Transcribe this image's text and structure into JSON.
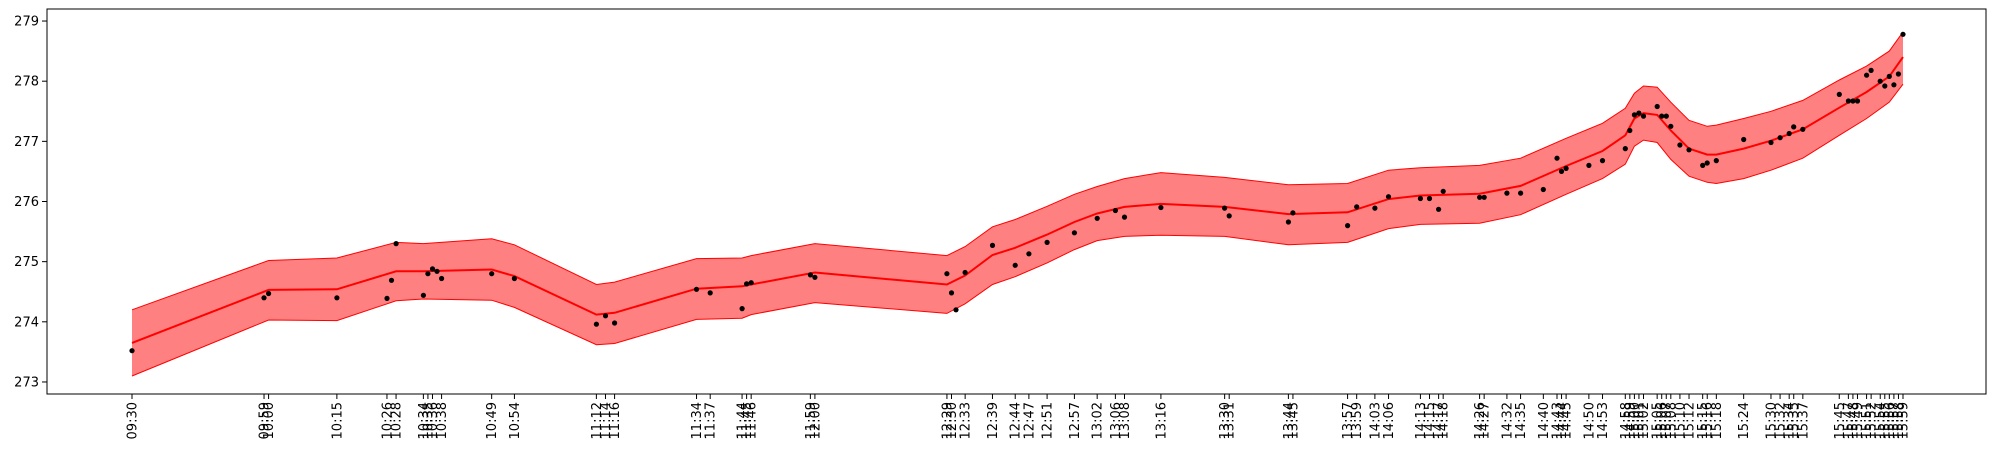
{
  "chart_data": {
    "type": "line",
    "title": "",
    "xlabel": "",
    "ylabel": "",
    "ylim": [
      272.8,
      279.2
    ],
    "yticks": [
      273,
      274,
      275,
      276,
      277,
      278,
      279
    ],
    "x_tick_labels": [
      "09:30",
      "09:59",
      "10:00",
      "10:15",
      "10:26",
      "10:28",
      "10:34",
      "10:35",
      "10:36",
      "10:38",
      "10:49",
      "10:54",
      "11:12",
      "11:14",
      "11:16",
      "11:34",
      "11:37",
      "11:44",
      "11:45",
      "11:46",
      "11:59",
      "12:00",
      "12:29",
      "12:30",
      "12:33",
      "12:39",
      "12:44",
      "12:47",
      "12:51",
      "12:57",
      "13:02",
      "13:06",
      "13:08",
      "13:16",
      "13:30",
      "13:31",
      "13:44",
      "13:45",
      "13:57",
      "13:59",
      "14:03",
      "14:06",
      "14:13",
      "14:15",
      "14:17",
      "14:18",
      "14:26",
      "14:27",
      "14:32",
      "14:35",
      "14:40",
      "14:43",
      "14:44",
      "14:45",
      "14:50",
      "14:53",
      "14:58",
      "14:59",
      "15:00",
      "15:01",
      "15:02",
      "15:05",
      "15:06",
      "15:07",
      "15:08",
      "15:10",
      "15:12",
      "15:15",
      "15:16",
      "15:18",
      "15:24",
      "15:30",
      "15:32",
      "15:34",
      "15:35",
      "15:37",
      "15:45",
      "15:47",
      "15:48",
      "15:49",
      "15:51",
      "15:52",
      "15:54",
      "15:55",
      "15:56",
      "15:57",
      "15:58",
      "15:59"
    ],
    "series": [
      {
        "kind": "band",
        "color": "#ff8080",
        "edge_color": "#ff0000",
        "x": [
          "09:30",
          "10:00",
          "10:15",
          "10:28",
          "10:34",
          "10:49",
          "10:54",
          "11:12",
          "11:16",
          "11:34",
          "11:44",
          "11:46",
          "12:00",
          "12:29",
          "12:33",
          "12:39",
          "12:44",
          "12:51",
          "12:57",
          "13:02",
          "13:08",
          "13:16",
          "13:30",
          "13:44",
          "13:57",
          "14:06",
          "14:13",
          "14:26",
          "14:35",
          "14:45",
          "14:53",
          "14:58",
          "15:00",
          "15:02",
          "15:05",
          "15:08",
          "15:12",
          "15:16",
          "15:18",
          "15:24",
          "15:30",
          "15:37",
          "15:45",
          "15:51",
          "15:56",
          "15:59"
        ],
        "upper": [
          274.2,
          275.02,
          275.06,
          275.32,
          275.3,
          275.38,
          275.28,
          274.62,
          274.66,
          275.05,
          275.06,
          275.1,
          275.3,
          275.1,
          275.25,
          275.58,
          275.7,
          275.92,
          276.12,
          276.25,
          276.38,
          276.48,
          276.4,
          276.28,
          276.3,
          276.52,
          276.56,
          276.6,
          276.72,
          277.05,
          277.3,
          277.55,
          277.8,
          277.92,
          277.9,
          277.65,
          277.35,
          277.25,
          277.27,
          277.38,
          277.5,
          277.68,
          278.02,
          278.25,
          278.5,
          278.82
        ],
        "lower": [
          273.1,
          274.03,
          274.02,
          274.35,
          274.38,
          274.36,
          274.24,
          273.62,
          273.64,
          274.04,
          274.06,
          274.12,
          274.32,
          274.14,
          274.3,
          274.62,
          274.75,
          274.98,
          275.2,
          275.35,
          275.42,
          275.44,
          275.42,
          275.28,
          275.32,
          275.55,
          275.62,
          275.64,
          275.78,
          276.12,
          276.38,
          276.62,
          276.92,
          277.02,
          276.98,
          276.7,
          276.42,
          276.32,
          276.3,
          276.38,
          276.52,
          276.72,
          277.1,
          277.38,
          277.65,
          277.95
        ]
      },
      {
        "kind": "line",
        "color": "#ff0000",
        "x": [
          "09:30",
          "10:00",
          "10:15",
          "10:28",
          "10:34",
          "10:49",
          "10:54",
          "11:12",
          "11:16",
          "11:34",
          "11:44",
          "11:46",
          "12:00",
          "12:29",
          "12:33",
          "12:39",
          "12:44",
          "12:51",
          "12:57",
          "13:02",
          "13:08",
          "13:16",
          "13:30",
          "13:44",
          "13:57",
          "14:06",
          "14:13",
          "14:26",
          "14:35",
          "14:45",
          "14:53",
          "14:58",
          "15:00",
          "15:02",
          "15:05",
          "15:08",
          "15:12",
          "15:16",
          "15:18",
          "15:24",
          "15:30",
          "15:37",
          "15:45",
          "15:51",
          "15:56",
          "15:59"
        ],
        "y": [
          273.65,
          274.53,
          274.54,
          274.84,
          274.84,
          274.87,
          274.76,
          274.12,
          274.15,
          274.55,
          274.59,
          274.62,
          274.82,
          274.62,
          274.77,
          275.11,
          275.23,
          275.45,
          275.66,
          275.8,
          275.91,
          275.96,
          275.91,
          275.79,
          275.82,
          276.04,
          276.1,
          276.13,
          276.26,
          276.59,
          276.84,
          277.1,
          277.38,
          277.47,
          277.44,
          277.18,
          276.88,
          276.78,
          276.78,
          276.88,
          277.01,
          277.2,
          277.56,
          277.82,
          278.08,
          278.4
        ]
      },
      {
        "kind": "scatter",
        "color": "#000000",
        "points": [
          [
            "09:30",
            273.52
          ],
          [
            "09:59",
            274.4
          ],
          [
            "10:00",
            274.47
          ],
          [
            "10:15",
            274.4
          ],
          [
            "10:26",
            274.39
          ],
          [
            "10:27",
            274.69
          ],
          [
            "10:28",
            275.3
          ],
          [
            "10:34",
            274.44
          ],
          [
            "10:35",
            274.8
          ],
          [
            "10:36",
            274.88
          ],
          [
            "10:37",
            274.84
          ],
          [
            "10:38",
            274.72
          ],
          [
            "10:49",
            274.8
          ],
          [
            "10:54",
            274.72
          ],
          [
            "11:12",
            273.96
          ],
          [
            "11:14",
            274.1
          ],
          [
            "11:16",
            273.98
          ],
          [
            "11:34",
            274.54
          ],
          [
            "11:37",
            274.48
          ],
          [
            "11:44",
            274.22
          ],
          [
            "11:45",
            274.63
          ],
          [
            "11:46",
            274.65
          ],
          [
            "11:59",
            274.78
          ],
          [
            "12:00",
            274.74
          ],
          [
            "12:29",
            274.8
          ],
          [
            "12:30",
            274.48
          ],
          [
            "12:31",
            274.2
          ],
          [
            "12:33",
            274.82
          ],
          [
            "12:39",
            275.27
          ],
          [
            "12:44",
            274.94
          ],
          [
            "12:47",
            275.13
          ],
          [
            "12:51",
            275.32
          ],
          [
            "12:57",
            275.48
          ],
          [
            "13:02",
            275.72
          ],
          [
            "13:06",
            275.85
          ],
          [
            "13:08",
            275.74
          ],
          [
            "13:16",
            275.9
          ],
          [
            "13:30",
            275.89
          ],
          [
            "13:31",
            275.76
          ],
          [
            "13:44",
            275.66
          ],
          [
            "13:45",
            275.81
          ],
          [
            "13:57",
            275.6
          ],
          [
            "13:59",
            275.91
          ],
          [
            "14:03",
            275.89
          ],
          [
            "14:06",
            276.08
          ],
          [
            "14:13",
            276.05
          ],
          [
            "14:15",
            276.05
          ],
          [
            "14:17",
            275.87
          ],
          [
            "14:18",
            276.17
          ],
          [
            "14:26",
            276.07
          ],
          [
            "14:27",
            276.07
          ],
          [
            "14:32",
            276.14
          ],
          [
            "14:35",
            276.14
          ],
          [
            "14:40",
            276.2
          ],
          [
            "14:43",
            276.72
          ],
          [
            "14:44",
            276.5
          ],
          [
            "14:45",
            276.55
          ],
          [
            "14:50",
            276.6
          ],
          [
            "14:53",
            276.68
          ],
          [
            "14:58",
            276.88
          ],
          [
            "14:59",
            277.18
          ],
          [
            "15:00",
            277.44
          ],
          [
            "15:01",
            277.47
          ],
          [
            "15:02",
            277.42
          ],
          [
            "15:05",
            277.58
          ],
          [
            "15:06",
            277.42
          ],
          [
            "15:07",
            277.42
          ],
          [
            "15:08",
            277.25
          ],
          [
            "15:10",
            276.94
          ],
          [
            "15:12",
            276.86
          ],
          [
            "15:15",
            276.6
          ],
          [
            "15:16",
            276.64
          ],
          [
            "15:18",
            276.68
          ],
          [
            "15:24",
            277.03
          ],
          [
            "15:30",
            276.98
          ],
          [
            "15:32",
            277.06
          ],
          [
            "15:34",
            277.13
          ],
          [
            "15:35",
            277.24
          ],
          [
            "15:37",
            277.2
          ],
          [
            "15:45",
            277.78
          ],
          [
            "15:47",
            277.67
          ],
          [
            "15:48",
            277.67
          ],
          [
            "15:49",
            277.67
          ],
          [
            "15:51",
            278.1
          ],
          [
            "15:52",
            278.18
          ],
          [
            "15:54",
            278.0
          ],
          [
            "15:55",
            277.92
          ],
          [
            "15:56",
            278.08
          ],
          [
            "15:57",
            277.94
          ],
          [
            "15:58",
            278.12
          ],
          [
            "15:59",
            278.78
          ]
        ]
      }
    ]
  }
}
